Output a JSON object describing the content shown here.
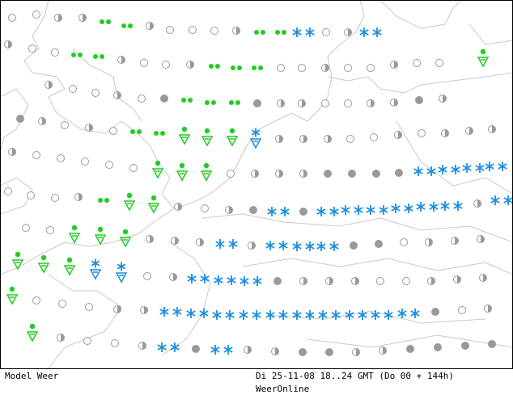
{
  "footer": {
    "model": "Model Weer",
    "time": "Di 25-11-08 18..24 GMT (Do 00 + 144h)",
    "source": "WeerOnline"
  }
}
